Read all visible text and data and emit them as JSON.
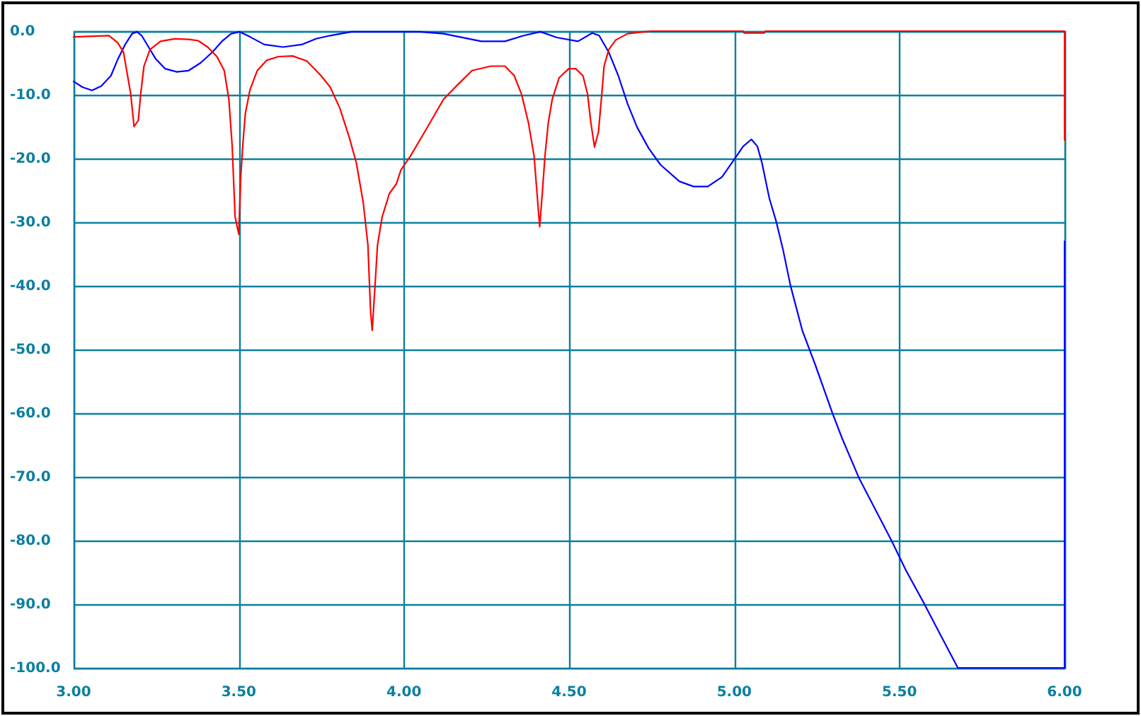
{
  "chart_data": {
    "type": "line",
    "xlim": [
      3,
      6
    ],
    "ylim": [
      -100,
      0
    ],
    "xticks": [
      {
        "value": 3,
        "label": "3.00"
      },
      {
        "value": 3.5,
        "label": "3.50"
      },
      {
        "value": 4,
        "label": "4.00"
      },
      {
        "value": 4.5,
        "label": "4.50"
      },
      {
        "value": 5,
        "label": "5.00"
      },
      {
        "value": 5.5,
        "label": "5.50"
      },
      {
        "value": 6,
        "label": "6.00"
      }
    ],
    "yticks": [
      {
        "value": 0,
        "label": "0.0"
      },
      {
        "value": -10,
        "label": "-10.0"
      },
      {
        "value": -20,
        "label": "-20.0"
      },
      {
        "value": -30,
        "label": "-30.0"
      },
      {
        "value": -40,
        "label": "-40.0"
      },
      {
        "value": -50,
        "label": "-50.0"
      },
      {
        "value": -60,
        "label": "-60.0"
      },
      {
        "value": -70,
        "label": "-70.0"
      },
      {
        "value": -80,
        "label": "-80.0"
      },
      {
        "value": -90,
        "label": "-90.0"
      },
      {
        "value": -100,
        "label": "-100.0"
      }
    ],
    "grid": true,
    "series": [
      {
        "color": "#0000ff",
        "x": [
          3.0,
          3.027,
          3.056,
          3.084,
          3.113,
          3.134,
          3.156,
          3.177,
          3.192,
          3.206,
          3.227,
          3.249,
          3.277,
          3.313,
          3.348,
          3.384,
          3.42,
          3.449,
          3.477,
          3.503,
          3.534,
          3.577,
          3.634,
          3.691,
          3.734,
          3.777,
          3.841,
          4.049,
          4.12,
          4.234,
          4.306,
          4.363,
          4.413,
          4.463,
          4.527,
          4.57,
          4.591,
          4.62,
          4.649,
          4.677,
          4.706,
          4.741,
          4.777,
          4.834,
          4.877,
          4.92,
          4.963,
          4.998,
          5.027,
          5.052,
          5.07,
          5.084,
          5.106,
          5.127,
          5.148,
          5.17,
          5.206,
          5.246,
          5.298,
          5.327,
          5.377,
          5.427,
          5.477,
          5.52,
          5.577,
          5.62,
          5.677,
          6.0,
          6.0
        ],
        "values": [
          -7.9,
          -8.8,
          -9.3,
          -8.6,
          -7.0,
          -4.4,
          -2.1,
          -0.4,
          -0.1,
          -0.7,
          -2.5,
          -4.4,
          -5.9,
          -6.4,
          -6.2,
          -5.0,
          -3.3,
          -1.6,
          -0.4,
          -0.1,
          -0.9,
          -2.1,
          -2.5,
          -2.1,
          -1.2,
          -0.7,
          -0.1,
          -0.1,
          -0.4,
          -1.6,
          -1.6,
          -0.7,
          -0.1,
          -1.0,
          -1.6,
          -0.3,
          -0.7,
          -3.3,
          -7.0,
          -11.4,
          -15.1,
          -18.4,
          -21.0,
          -23.6,
          -24.4,
          -24.4,
          -22.9,
          -20.3,
          -18.1,
          -17.0,
          -18.1,
          -20.7,
          -26.2,
          -29.9,
          -34.4,
          -39.9,
          -47.0,
          -52.5,
          -60.1,
          -64.0,
          -70.1,
          -75.1,
          -80.1,
          -84.7,
          -90.1,
          -94.4,
          -100.0,
          -100.0,
          -33.0
        ]
      },
      {
        "color": "#ff0000",
        "x": [
          3.0,
          3.107,
          3.133,
          3.151,
          3.173,
          3.183,
          3.196,
          3.203,
          3.213,
          3.231,
          3.263,
          3.306,
          3.348,
          3.377,
          3.406,
          3.434,
          3.456,
          3.47,
          3.48,
          3.489,
          3.5,
          3.506,
          3.513,
          3.52,
          3.534,
          3.556,
          3.584,
          3.62,
          3.663,
          3.706,
          3.749,
          3.777,
          3.806,
          3.834,
          3.856,
          3.877,
          3.891,
          3.899,
          3.904,
          3.913,
          3.92,
          3.934,
          3.956,
          3.977,
          3.991,
          4.02,
          4.063,
          4.12,
          4.163,
          4.206,
          4.263,
          4.306,
          4.334,
          4.356,
          4.377,
          4.394,
          4.403,
          4.411,
          4.42,
          4.427,
          4.437,
          4.449,
          4.47,
          4.499,
          4.52,
          4.542,
          4.556,
          4.566,
          4.577,
          4.589,
          4.599,
          4.606,
          4.62,
          4.641,
          4.677,
          4.727,
          4.75,
          5.027,
          5.03,
          5.091,
          5.094,
          6.0,
          6.0
        ],
        "values": [
          -0.9,
          -0.7,
          -1.8,
          -3.3,
          -9.9,
          -15.0,
          -14.0,
          -9.9,
          -5.5,
          -2.9,
          -1.6,
          -1.2,
          -1.3,
          -1.5,
          -2.5,
          -4.0,
          -6.2,
          -10.7,
          -18.0,
          -29.2,
          -31.9,
          -22.9,
          -17.3,
          -12.9,
          -9.2,
          -6.2,
          -4.6,
          -4.0,
          -3.9,
          -4.7,
          -7.0,
          -8.8,
          -12.1,
          -16.6,
          -20.7,
          -27.0,
          -33.6,
          -44.0,
          -47.0,
          -39.6,
          -33.6,
          -29.2,
          -25.5,
          -24.0,
          -21.8,
          -19.6,
          -15.8,
          -10.7,
          -8.4,
          -6.2,
          -5.5,
          -5.5,
          -7.0,
          -9.9,
          -14.4,
          -19.6,
          -25.5,
          -30.7,
          -24.7,
          -19.6,
          -14.4,
          -10.7,
          -7.3,
          -5.9,
          -5.9,
          -7.0,
          -9.9,
          -14.4,
          -18.2,
          -15.8,
          -9.9,
          -5.5,
          -2.9,
          -1.4,
          -0.4,
          -0.1,
          0,
          0,
          -0.3,
          -0.3,
          0,
          0,
          -17.1
        ]
      }
    ]
  }
}
